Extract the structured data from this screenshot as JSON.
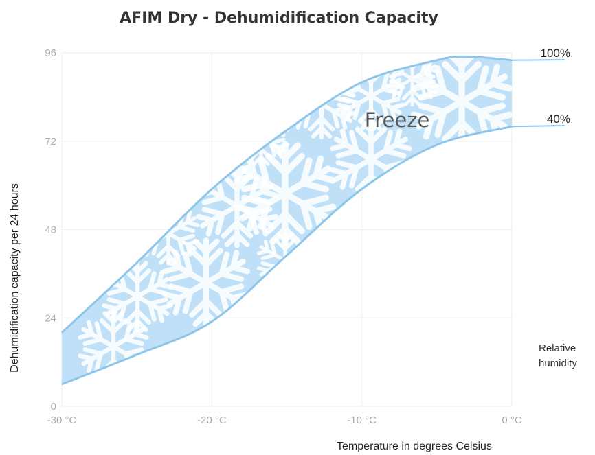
{
  "chart_data": {
    "type": "area",
    "title": "AFIM Dry - Dehumidification Capacity",
    "xlabel": "Temperature in degrees Celsius",
    "ylabel": "Dehumidification capacity per 24 hours",
    "x_ticks": [
      {
        "value": -30,
        "label": "-30 °C"
      },
      {
        "value": -20,
        "label": "-20 °C"
      },
      {
        "value": -10,
        "label": "-10 °C"
      },
      {
        "value": 0,
        "label": "0 °C"
      }
    ],
    "y_ticks": [
      {
        "value": 0,
        "label": "0"
      },
      {
        "value": 24,
        "label": "24"
      },
      {
        "value": 48,
        "label": "48"
      },
      {
        "value": 72,
        "label": "72"
      },
      {
        "value": 96,
        "label": "96"
      }
    ],
    "xlim": [
      -30,
      0
    ],
    "ylim": [
      0,
      96
    ],
    "grid": true,
    "series": [
      {
        "name": "100%",
        "x": [
          -30,
          -25,
          -20,
          -15,
          -10,
          -5,
          -3,
          0
        ],
        "values": [
          20,
          39,
          59,
          75,
          88,
          94,
          95,
          94
        ]
      },
      {
        "name": "40%",
        "x": [
          -30,
          -25,
          -20,
          -15,
          -10,
          -5,
          0
        ],
        "values": [
          6,
          14,
          23,
          41,
          59,
          71,
          76
        ]
      }
    ],
    "band_label": "Freeze",
    "legend_title": "Relative humidity",
    "legend_placement": "right",
    "colors": {
      "band_fill": "#bfe0f7",
      "line": "#8ec5ea",
      "grid": "#eeeeee",
      "snowflake": "#ffffff"
    }
  }
}
